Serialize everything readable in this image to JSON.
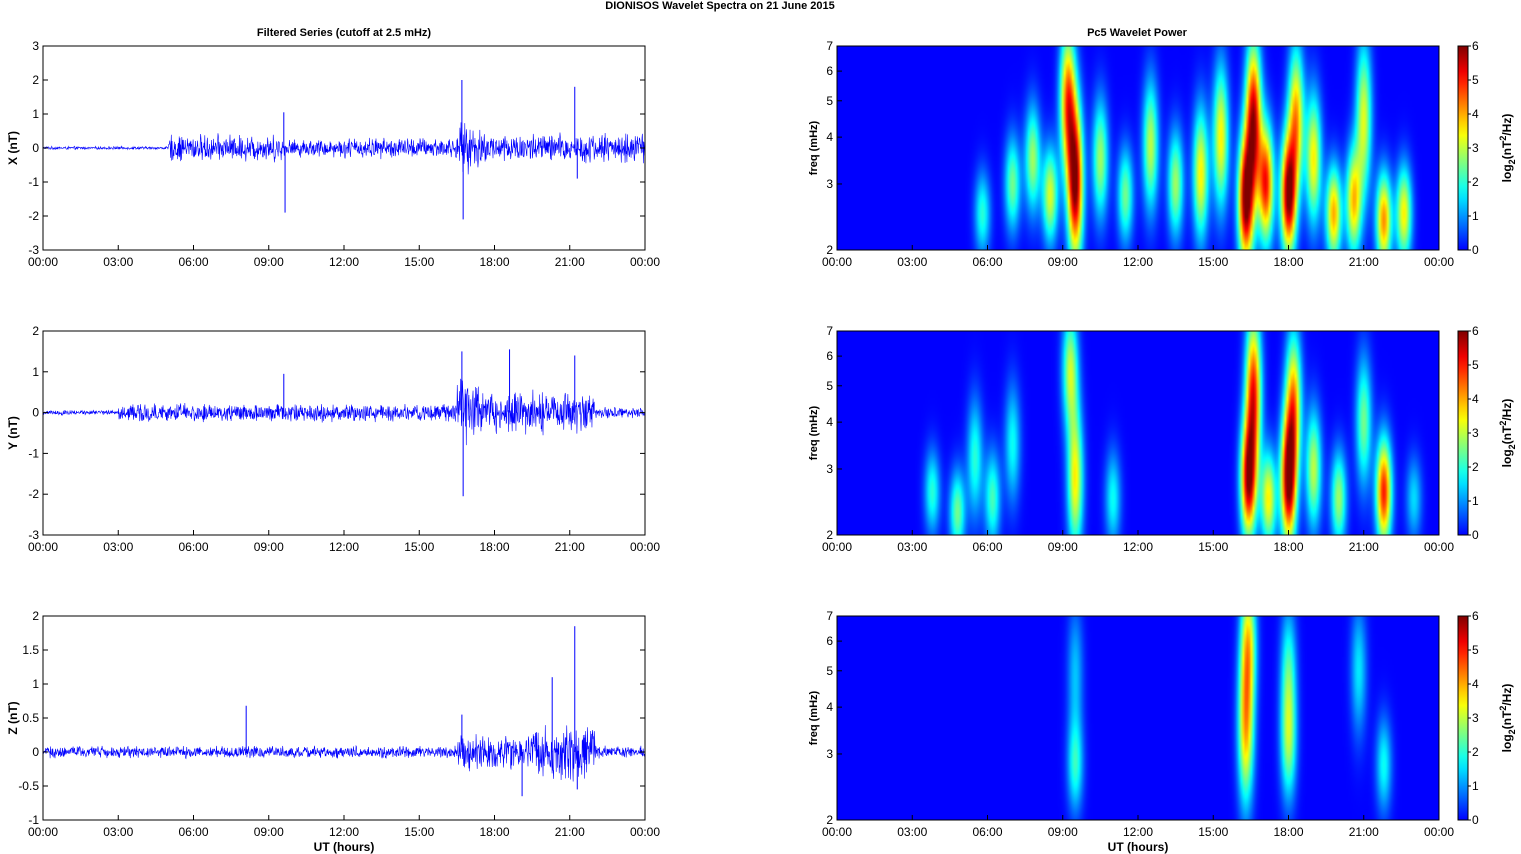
{
  "figure": {
    "title": "DIONISOS Wavelet Spectra on 21 June      2015",
    "left_title": "Filtered Series (cutoff at 2.5 mHz)",
    "right_title": "Pc5 Wavelet Power"
  },
  "chart_data": [
    {
      "type": "line",
      "panel": "X",
      "ylabel": "X (nT)",
      "xlabel": "",
      "x_ticks": [
        "00:00",
        "03:00",
        "06:00",
        "09:00",
        "12:00",
        "15:00",
        "18:00",
        "21:00",
        "00:00"
      ],
      "x_range_hours": [
        0,
        24
      ],
      "ylim": [
        -3,
        3
      ],
      "y_ticks": [
        "3",
        "2",
        "1",
        "0",
        "-1",
        "-2",
        "-3"
      ],
      "y_tick_values": [
        3,
        2,
        1,
        0,
        -1,
        -2,
        -3
      ],
      "color": "#0000ff",
      "grid": false,
      "envelope_segments": [
        {
          "t": [
            0,
            5
          ],
          "amp": 0.05
        },
        {
          "t": [
            5,
            9.5
          ],
          "amp": 0.45
        },
        {
          "t": [
            9.5,
            12
          ],
          "amp": 0.3
        },
        {
          "t": [
            12,
            16.5
          ],
          "amp": 0.35
        },
        {
          "t": [
            16.5,
            17.5
          ],
          "amp": 0.8
        },
        {
          "t": [
            17.5,
            24
          ],
          "amp": 0.5
        }
      ],
      "spikes": [
        {
          "t": 9.6,
          "y": 1.05
        },
        {
          "t": 9.65,
          "y": -1.9
        },
        {
          "t": 16.7,
          "y": 2.0
        },
        {
          "t": 16.75,
          "y": -2.1
        },
        {
          "t": 21.2,
          "y": 1.8
        },
        {
          "t": 21.3,
          "y": -0.9
        }
      ]
    },
    {
      "type": "line",
      "panel": "Y",
      "ylabel": "Y (nT)",
      "xlabel": "",
      "x_ticks": [
        "00:00",
        "03:00",
        "06:00",
        "09:00",
        "12:00",
        "15:00",
        "18:00",
        "21:00",
        "00:00"
      ],
      "x_range_hours": [
        0,
        24
      ],
      "ylim": [
        -3,
        2
      ],
      "y_ticks": [
        "2",
        "1",
        "0",
        "-1",
        "-2",
        "-3"
      ],
      "y_tick_values": [
        2,
        1,
        0,
        -1,
        -2,
        -3
      ],
      "color": "#0000ff",
      "grid": false,
      "envelope_segments": [
        {
          "t": [
            0,
            3
          ],
          "amp": 0.07
        },
        {
          "t": [
            3,
            9.5
          ],
          "amp": 0.25
        },
        {
          "t": [
            9.5,
            16.5
          ],
          "amp": 0.25
        },
        {
          "t": [
            16.5,
            17.5
          ],
          "amp": 0.9
        },
        {
          "t": [
            17.5,
            22
          ],
          "amp": 0.6
        },
        {
          "t": [
            22,
            24
          ],
          "amp": 0.15
        }
      ],
      "spikes": [
        {
          "t": 9.6,
          "y": 0.95
        },
        {
          "t": 16.7,
          "y": 1.5
        },
        {
          "t": 16.75,
          "y": -2.05
        },
        {
          "t": 18.6,
          "y": 1.55
        },
        {
          "t": 21.2,
          "y": 1.4
        }
      ]
    },
    {
      "type": "line",
      "panel": "Z",
      "ylabel": "Z (nT)",
      "xlabel": "UT (hours)",
      "x_ticks": [
        "00:00",
        "03:00",
        "06:00",
        "09:00",
        "12:00",
        "15:00",
        "18:00",
        "21:00",
        "00:00"
      ],
      "x_range_hours": [
        0,
        24
      ],
      "ylim": [
        -1,
        2
      ],
      "y_ticks": [
        "2",
        "1.5",
        "1",
        "0.5",
        "0",
        "-0.5",
        "-1"
      ],
      "y_tick_values": [
        2,
        1.5,
        1,
        0.5,
        0,
        -0.5,
        -1
      ],
      "color": "#0000ff",
      "grid": false,
      "envelope_segments": [
        {
          "t": [
            0,
            16.5
          ],
          "amp": 0.1
        },
        {
          "t": [
            16.5,
            19.5
          ],
          "amp": 0.3
        },
        {
          "t": [
            19.5,
            22
          ],
          "amp": 0.45
        },
        {
          "t": [
            22,
            24
          ],
          "amp": 0.1
        }
      ],
      "spikes": [
        {
          "t": 8.1,
          "y": 0.68
        },
        {
          "t": 16.7,
          "y": 0.55
        },
        {
          "t": 19.1,
          "y": -0.65
        },
        {
          "t": 20.3,
          "y": 1.1
        },
        {
          "t": 21.2,
          "y": 1.85
        },
        {
          "t": 21.3,
          "y": -0.55
        }
      ]
    },
    {
      "type": "heatmap",
      "panel": "X",
      "ylabel": "freq (mHz)",
      "xlabel": "",
      "x_ticks": [
        "00:00",
        "03:00",
        "06:00",
        "09:00",
        "12:00",
        "15:00",
        "18:00",
        "21:00",
        "00:00"
      ],
      "y_ticks": [
        "7",
        "6",
        "5",
        "4",
        "3",
        "2"
      ],
      "y_tick_values": [
        7,
        6,
        5,
        4,
        3,
        2
      ],
      "y_scale": "log",
      "ylim": [
        2,
        7
      ],
      "colorbar_label": "log2(nT^2/Hz)",
      "colorbar_ticks": [
        "6",
        "5",
        "4",
        "3",
        "2",
        "1",
        "0"
      ],
      "clim": [
        0,
        6
      ],
      "colormap": "jet",
      "blobs": [
        {
          "t": 5.8,
          "f": 2.5,
          "p": 2.0,
          "ft": 0.4
        },
        {
          "t": 7.0,
          "f": 3.0,
          "p": 2.5,
          "ft": 0.5
        },
        {
          "t": 7.8,
          "f": 3.5,
          "p": 2.8,
          "ft": 0.6
        },
        {
          "t": 8.5,
          "f": 2.8,
          "p": 3.2,
          "ft": 0.5
        },
        {
          "t": 9.5,
          "f": 3.0,
          "p": 6.0,
          "ft": 1.0
        },
        {
          "t": 9.2,
          "f": 5.0,
          "p": 4.5,
          "ft": 0.9
        },
        {
          "t": 10.5,
          "f": 3.5,
          "p": 2.8,
          "ft": 0.7
        },
        {
          "t": 11.5,
          "f": 2.8,
          "p": 2.5,
          "ft": 0.5
        },
        {
          "t": 12.5,
          "f": 3.8,
          "p": 3.0,
          "ft": 0.8
        },
        {
          "t": 13.5,
          "f": 3.0,
          "p": 2.8,
          "ft": 0.6
        },
        {
          "t": 14.5,
          "f": 3.2,
          "p": 3.5,
          "ft": 0.8
        },
        {
          "t": 15.3,
          "f": 4.0,
          "p": 3.5,
          "ft": 0.9
        },
        {
          "t": 16.3,
          "f": 2.7,
          "p": 6.0,
          "ft": 0.8
        },
        {
          "t": 16.6,
          "f": 4.5,
          "p": 5.5,
          "ft": 1.0
        },
        {
          "t": 17.1,
          "f": 3.0,
          "p": 5.0,
          "ft": 0.7
        },
        {
          "t": 18.0,
          "f": 2.8,
          "p": 6.0,
          "ft": 0.7
        },
        {
          "t": 18.3,
          "f": 4.5,
          "p": 4.0,
          "ft": 0.9
        },
        {
          "t": 19.0,
          "f": 3.5,
          "p": 3.5,
          "ft": 0.8
        },
        {
          "t": 19.8,
          "f": 2.5,
          "p": 4.0,
          "ft": 0.5
        },
        {
          "t": 20.6,
          "f": 2.7,
          "p": 3.8,
          "ft": 0.6
        },
        {
          "t": 21.0,
          "f": 4.5,
          "p": 3.2,
          "ft": 1.0
        },
        {
          "t": 21.8,
          "f": 2.4,
          "p": 4.2,
          "ft": 0.5
        },
        {
          "t": 22.6,
          "f": 2.5,
          "p": 3.5,
          "ft": 0.5
        }
      ]
    },
    {
      "type": "heatmap",
      "panel": "Y",
      "ylabel": "freq (mHz)",
      "xlabel": "",
      "x_ticks": [
        "00:00",
        "03:00",
        "06:00",
        "09:00",
        "12:00",
        "15:00",
        "18:00",
        "21:00",
        "00:00"
      ],
      "y_ticks": [
        "7",
        "6",
        "5",
        "4",
        "3",
        "2"
      ],
      "y_tick_values": [
        7,
        6,
        5,
        4,
        3,
        2
      ],
      "y_scale": "log",
      "ylim": [
        2,
        7
      ],
      "colorbar_label": "log2(nT^2/Hz)",
      "colorbar_ticks": [
        "6",
        "5",
        "4",
        "3",
        "2",
        "1",
        "0"
      ],
      "clim": [
        0,
        6
      ],
      "colormap": "jet",
      "blobs": [
        {
          "t": 3.8,
          "f": 2.6,
          "p": 2.0,
          "ft": 0.4
        },
        {
          "t": 4.8,
          "f": 2.3,
          "p": 2.5,
          "ft": 0.4
        },
        {
          "t": 5.5,
          "f": 3.2,
          "p": 2.0,
          "ft": 0.7
        },
        {
          "t": 6.2,
          "f": 2.5,
          "p": 2.2,
          "ft": 0.5
        },
        {
          "t": 7.0,
          "f": 3.5,
          "p": 1.8,
          "ft": 0.7
        },
        {
          "t": 9.5,
          "f": 2.8,
          "p": 3.5,
          "ft": 0.9
        },
        {
          "t": 9.3,
          "f": 5.5,
          "p": 3.0,
          "ft": 0.7
        },
        {
          "t": 11.0,
          "f": 2.5,
          "p": 1.8,
          "ft": 0.5
        },
        {
          "t": 16.4,
          "f": 2.8,
          "p": 5.5,
          "ft": 0.7
        },
        {
          "t": 16.6,
          "f": 4.8,
          "p": 5.0,
          "ft": 1.0
        },
        {
          "t": 17.2,
          "f": 2.5,
          "p": 3.5,
          "ft": 0.5
        },
        {
          "t": 18.0,
          "f": 2.8,
          "p": 6.0,
          "ft": 0.8
        },
        {
          "t": 18.2,
          "f": 4.5,
          "p": 4.0,
          "ft": 0.9
        },
        {
          "t": 19.0,
          "f": 3.0,
          "p": 3.0,
          "ft": 0.7
        },
        {
          "t": 20.0,
          "f": 2.5,
          "p": 2.8,
          "ft": 0.5
        },
        {
          "t": 21.0,
          "f": 4.0,
          "p": 2.5,
          "ft": 0.8
        },
        {
          "t": 21.8,
          "f": 2.6,
          "p": 5.0,
          "ft": 0.6
        },
        {
          "t": 23.0,
          "f": 2.5,
          "p": 1.5,
          "ft": 0.4
        }
      ]
    },
    {
      "type": "heatmap",
      "panel": "Z",
      "ylabel": "freq (mHz)",
      "xlabel": "UT (hours)",
      "x_ticks": [
        "00:00",
        "03:00",
        "06:00",
        "09:00",
        "12:00",
        "15:00",
        "18:00",
        "21:00",
        "00:00"
      ],
      "y_ticks": [
        "7",
        "6",
        "5",
        "4",
        "3",
        "2"
      ],
      "y_tick_values": [
        7,
        6,
        5,
        4,
        3,
        2
      ],
      "y_scale": "log",
      "ylim": [
        2,
        7
      ],
      "colorbar_label": "log2(nT^2/Hz)",
      "colorbar_ticks": [
        "6",
        "5",
        "4",
        "3",
        "2",
        "1",
        "0"
      ],
      "clim": [
        0,
        6
      ],
      "colormap": "jet",
      "blobs": [
        {
          "t": 9.5,
          "f": 2.8,
          "p": 2.0,
          "ft": 0.5
        },
        {
          "t": 9.5,
          "f": 5.0,
          "p": 1.3,
          "ft": 0.8
        },
        {
          "t": 16.3,
          "f": 3.5,
          "p": 3.8,
          "ft": 1.0
        },
        {
          "t": 16.4,
          "f": 6.0,
          "p": 3.2,
          "ft": 0.8
        },
        {
          "t": 18.0,
          "f": 3.2,
          "p": 2.5,
          "ft": 0.7
        },
        {
          "t": 18.0,
          "f": 5.0,
          "p": 2.0,
          "ft": 0.8
        },
        {
          "t": 20.8,
          "f": 5.0,
          "p": 1.6,
          "ft": 0.8
        },
        {
          "t": 21.8,
          "f": 2.8,
          "p": 1.8,
          "ft": 0.5
        }
      ]
    }
  ]
}
